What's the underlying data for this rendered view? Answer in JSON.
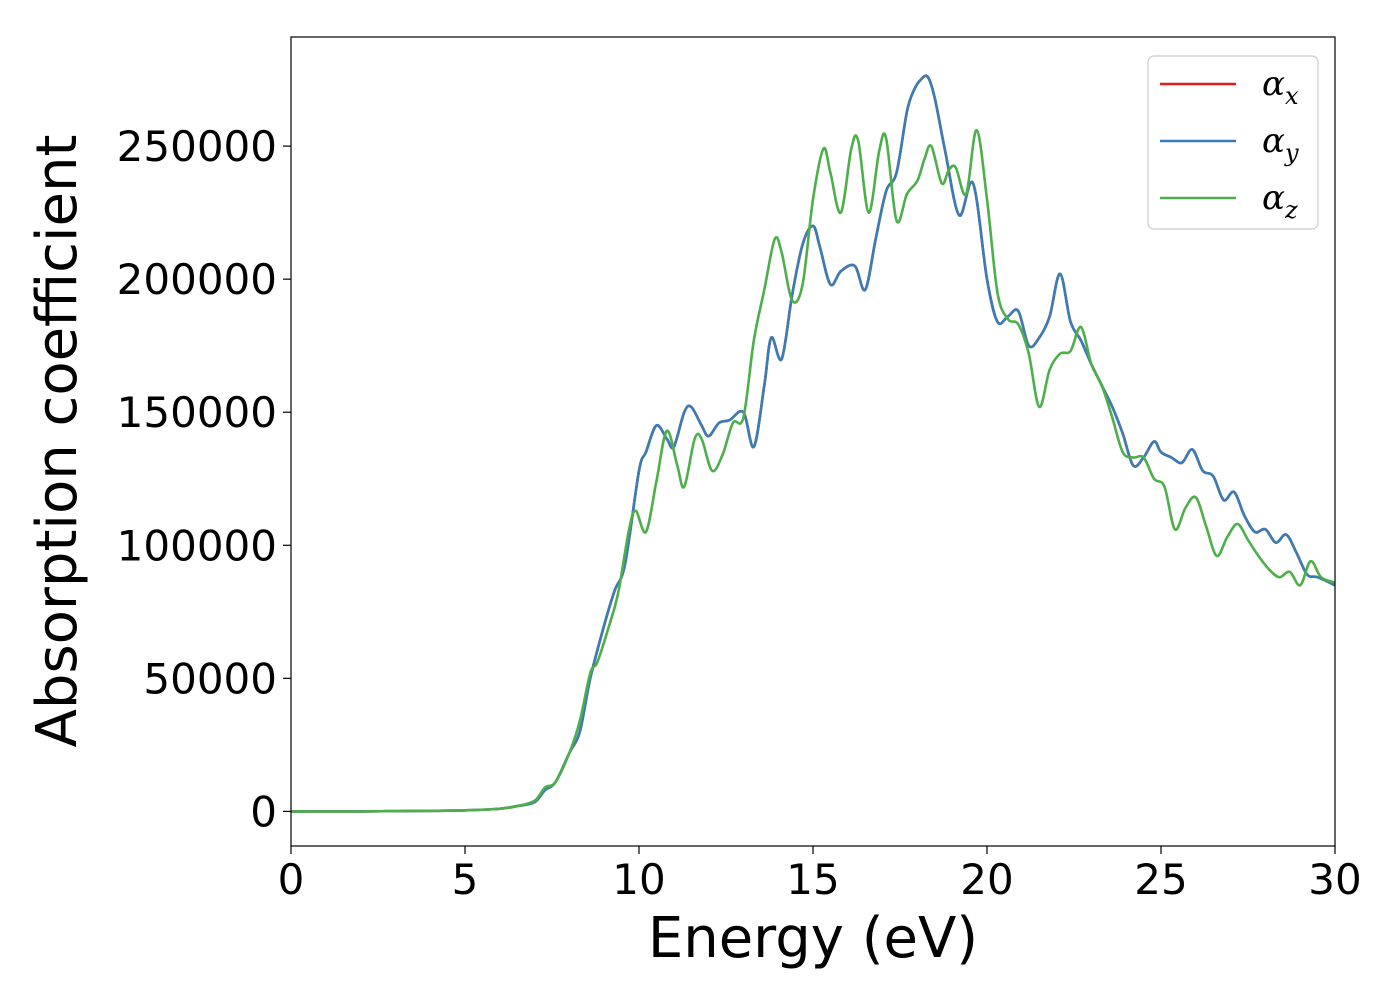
{
  "chart_data": {
    "type": "line",
    "title": "",
    "xlabel": "Energy (eV)",
    "ylabel": "Absorption coefficient",
    "xlim": [
      0,
      30
    ],
    "ylim": [
      -13000,
      291000
    ],
    "xticks": [
      0,
      5,
      10,
      15,
      20,
      25,
      30
    ],
    "yticks": [
      0,
      50000,
      100000,
      150000,
      200000,
      250000
    ],
    "grid": false,
    "legend_position": "top-right",
    "series": [
      {
        "name": "αx",
        "legend_base": "α",
        "legend_sub": "x",
        "color": "#e41a1c",
        "x": [
          0,
          1,
          2,
          3,
          4,
          5,
          6,
          6.5,
          7,
          7.3,
          7.6,
          8,
          8.3,
          8.6,
          9,
          9.3,
          9.6,
          10,
          10.2,
          10.5,
          10.8,
          11,
          11.3,
          11.5,
          11.8,
          12,
          12.3,
          12.6,
          13,
          13.3,
          13.6,
          13.8,
          14.1,
          14.4,
          14.7,
          15,
          15.2,
          15.5,
          15.8,
          16.2,
          16.5,
          16.8,
          17.1,
          17.4,
          17.7,
          17.9,
          18.1,
          18.3,
          18.5,
          18.8,
          19.2,
          19.6,
          20,
          20.3,
          20.6,
          20.9,
          21.2,
          21.5,
          21.8,
          22.1,
          22.4,
          22.7,
          23,
          23.3,
          23.6,
          23.9,
          24.2,
          24.5,
          24.8,
          25,
          25.3,
          25.6,
          25.9,
          26.2,
          26.5,
          26.8,
          27.1,
          27.4,
          27.7,
          28,
          28.3,
          28.6,
          28.9,
          29.2,
          29.5,
          30
        ],
        "y": [
          0,
          0,
          0,
          100,
          200,
          400,
          1000,
          2000,
          3500,
          8000,
          11000,
          22000,
          30000,
          50000,
          70000,
          83000,
          93000,
          128000,
          135000,
          145000,
          140000,
          137000,
          150000,
          152000,
          145000,
          141000,
          146000,
          147000,
          150000,
          137000,
          160000,
          178000,
          170000,
          194000,
          213000,
          220000,
          212000,
          198000,
          203000,
          205000,
          196000,
          215000,
          233000,
          240000,
          263000,
          271000,
          275000,
          276000,
          268000,
          248000,
          224000,
          236000,
          200000,
          184000,
          186000,
          188000,
          175000,
          178000,
          186000,
          202000,
          184000,
          177000,
          168000,
          160000,
          152000,
          142000,
          130000,
          133000,
          139000,
          135000,
          133000,
          131000,
          136000,
          128000,
          126000,
          117000,
          120000,
          111000,
          105000,
          106000,
          101000,
          104000,
          97000,
          89000,
          88000,
          85000
        ]
      },
      {
        "name": "αy",
        "legend_base": "α",
        "legend_sub": "y",
        "color": "#377eb8",
        "x": [
          0,
          1,
          2,
          3,
          4,
          5,
          6,
          6.5,
          7,
          7.3,
          7.6,
          8,
          8.3,
          8.6,
          9,
          9.3,
          9.6,
          10,
          10.2,
          10.5,
          10.8,
          11,
          11.3,
          11.5,
          11.8,
          12,
          12.3,
          12.6,
          13,
          13.3,
          13.6,
          13.8,
          14.1,
          14.4,
          14.7,
          15,
          15.2,
          15.5,
          15.8,
          16.2,
          16.5,
          16.8,
          17.1,
          17.4,
          17.7,
          17.9,
          18.1,
          18.3,
          18.5,
          18.8,
          19.2,
          19.6,
          20,
          20.3,
          20.6,
          20.9,
          21.2,
          21.5,
          21.8,
          22.1,
          22.4,
          22.7,
          23,
          23.3,
          23.6,
          23.9,
          24.2,
          24.5,
          24.8,
          25,
          25.3,
          25.6,
          25.9,
          26.2,
          26.5,
          26.8,
          27.1,
          27.4,
          27.7,
          28,
          28.3,
          28.6,
          28.9,
          29.2,
          29.5,
          30
        ],
        "y": [
          0,
          0,
          0,
          100,
          200,
          400,
          1000,
          2000,
          3500,
          8000,
          11000,
          22000,
          30000,
          50000,
          70000,
          83000,
          93000,
          128000,
          135000,
          145000,
          140000,
          137000,
          150000,
          152000,
          145000,
          141000,
          146000,
          147000,
          150000,
          137000,
          160000,
          178000,
          170000,
          194000,
          213000,
          220000,
          212000,
          198000,
          203000,
          205000,
          196000,
          215000,
          233000,
          240000,
          263000,
          271000,
          275000,
          276000,
          268000,
          248000,
          224000,
          236000,
          200000,
          184000,
          186000,
          188000,
          175000,
          178000,
          186000,
          202000,
          184000,
          177000,
          168000,
          160000,
          152000,
          142000,
          130000,
          133000,
          139000,
          135000,
          133000,
          131000,
          136000,
          128000,
          126000,
          117000,
          120000,
          111000,
          105000,
          106000,
          101000,
          104000,
          97000,
          89000,
          88000,
          85000
        ]
      },
      {
        "name": "αz",
        "legend_base": "α",
        "legend_sub": "z",
        "color": "#4daf4a",
        "x": [
          0,
          1,
          2,
          3,
          4,
          5,
          6,
          6.5,
          7,
          7.3,
          7.6,
          8,
          8.3,
          8.6,
          8.8,
          9.1,
          9.4,
          9.7,
          9.9,
          10.2,
          10.5,
          10.8,
          11.1,
          11.3,
          11.6,
          11.8,
          12.1,
          12.4,
          12.7,
          13,
          13.3,
          13.6,
          13.9,
          14.1,
          14.4,
          14.7,
          15,
          15.3,
          15.5,
          15.8,
          16.1,
          16.3,
          16.6,
          16.9,
          17.1,
          17.4,
          17.7,
          18,
          18.2,
          18.4,
          18.7,
          18.9,
          19.1,
          19.4,
          19.7,
          20,
          20.3,
          20.6,
          20.9,
          21.2,
          21.5,
          21.8,
          22.1,
          22.4,
          22.7,
          23,
          23.3,
          23.6,
          23.9,
          24.2,
          24.5,
          24.8,
          25.1,
          25.4,
          25.7,
          26,
          26.3,
          26.6,
          26.9,
          27.2,
          27.5,
          27.8,
          28.1,
          28.4,
          28.7,
          29,
          29.3,
          29.6,
          30
        ],
        "y": [
          0,
          0,
          0,
          100,
          200,
          400,
          1000,
          2000,
          4000,
          9000,
          11000,
          22000,
          34000,
          52000,
          56000,
          68000,
          82000,
          105000,
          113000,
          105000,
          124000,
          143000,
          130000,
          122000,
          140000,
          140000,
          128000,
          134000,
          146000,
          148000,
          177000,
          196000,
          215000,
          210000,
          192000,
          198000,
          230000,
          249000,
          240000,
          225000,
          249000,
          252000,
          225000,
          248000,
          253000,
          222000,
          232000,
          237000,
          245000,
          250000,
          236000,
          241000,
          242000,
          232000,
          256000,
          230000,
          195000,
          185000,
          183000,
          172000,
          152000,
          166000,
          172000,
          173000,
          182000,
          168000,
          160000,
          148000,
          135000,
          133000,
          133000,
          125000,
          122000,
          106000,
          114000,
          118000,
          107000,
          96000,
          103000,
          108000,
          102000,
          96000,
          91000,
          88000,
          90000,
          85000,
          94000,
          88000,
          86000
        ]
      }
    ]
  }
}
